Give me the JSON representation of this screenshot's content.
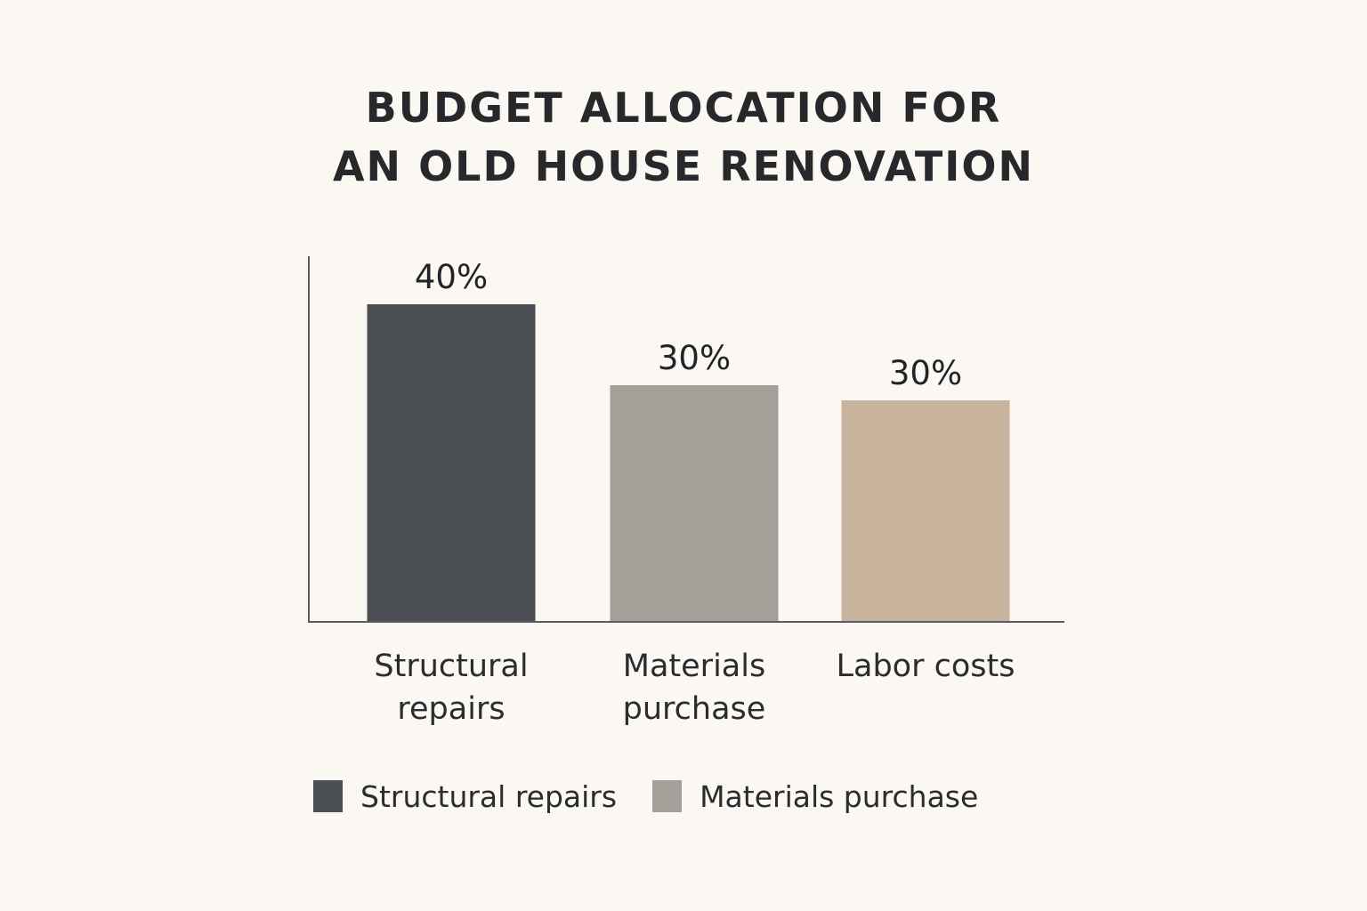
{
  "title_lines": [
    "BUDGET ALLOCATION FOR",
    "AN OLD HOUSE RENOVATION"
  ],
  "chart_data": {
    "type": "bar",
    "title": "BUDGET ALLOCATION FOR AN OLD HOUSE RENOVATION",
    "categories": [
      "Structural repairs",
      "Materials purchase",
      "Labor costs"
    ],
    "category_label_lines": [
      [
        "Structural",
        "repairs"
      ],
      [
        "Materials",
        "purchase"
      ],
      [
        "Labor costs"
      ]
    ],
    "values": [
      40,
      30,
      30
    ],
    "data_labels": [
      "40%",
      "30%",
      "30%"
    ],
    "bar_colors": [
      "#4b4f53",
      "#a59f99",
      "#c8b39c"
    ],
    "xlabel": "",
    "ylabel": "",
    "grid": false,
    "legend_placement": "bottom"
  },
  "legend": {
    "items": [
      {
        "label": "Structural repairs",
        "color": "#4b4f53"
      },
      {
        "label": "Materials purchase",
        "color": "#a59f99"
      }
    ]
  }
}
